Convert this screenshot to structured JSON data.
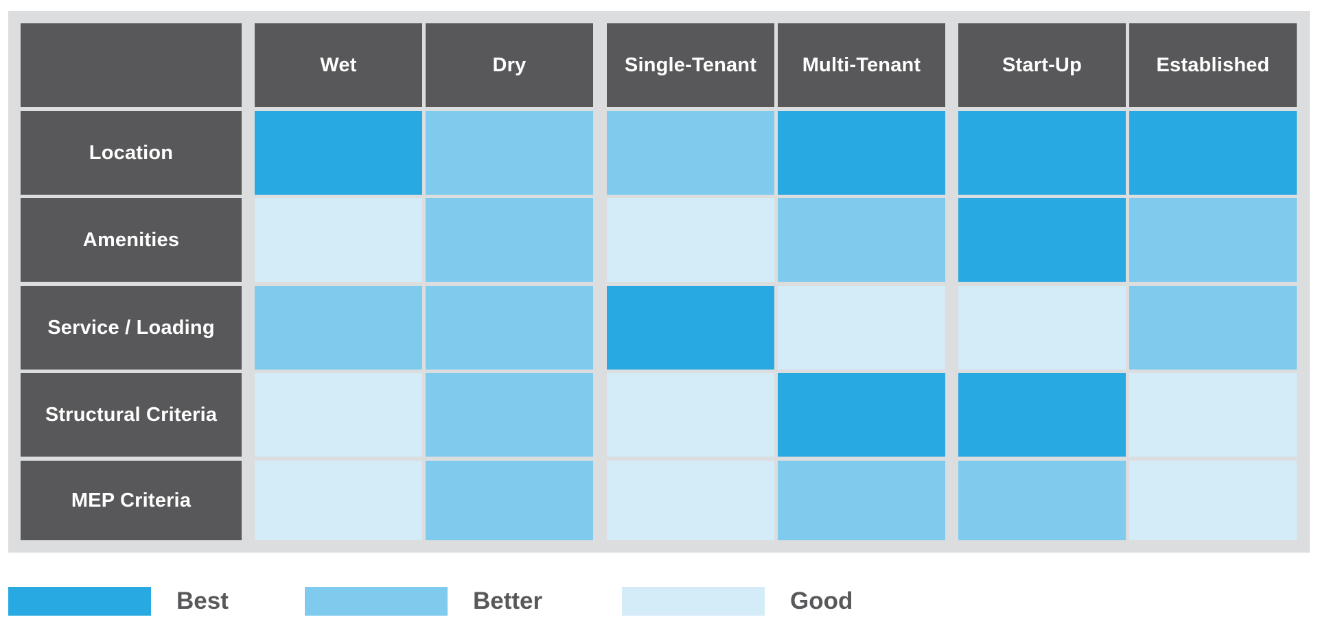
{
  "chart_data": {
    "type": "heatmap",
    "title": "",
    "columns": [
      "Wet",
      "Dry",
      "Single-Tenant",
      "Multi-Tenant",
      "Start-Up",
      "Established"
    ],
    "column_groups": [
      [
        "Wet",
        "Dry"
      ],
      [
        "Single-Tenant",
        "Multi-Tenant"
      ],
      [
        "Start-Up",
        "Established"
      ]
    ],
    "rows": [
      "Location",
      "Amenities",
      "Service / Loading",
      "Structural Criteria",
      "MEP Criteria"
    ],
    "values": [
      [
        "Best",
        "Better",
        "Better",
        "Best",
        "Best",
        "Best"
      ],
      [
        "Good",
        "Better",
        "Good",
        "Better",
        "Best",
        "Better"
      ],
      [
        "Better",
        "Better",
        "Best",
        "Good",
        "Good",
        "Better"
      ],
      [
        "Good",
        "Better",
        "Good",
        "Best",
        "Best",
        "Good"
      ],
      [
        "Good",
        "Better",
        "Good",
        "Better",
        "Better",
        "Good"
      ]
    ],
    "levels": [
      {
        "label": "Best",
        "color": "#29a9e1"
      },
      {
        "label": "Better",
        "color": "#7fcbee"
      },
      {
        "label": "Good",
        "color": "#d4ecf8"
      }
    ],
    "legend_position": "bottom-left"
  },
  "colors": {
    "header_bg": "#58585a",
    "frame_bg": "#dcdddf",
    "legend_text": "#58585a"
  }
}
